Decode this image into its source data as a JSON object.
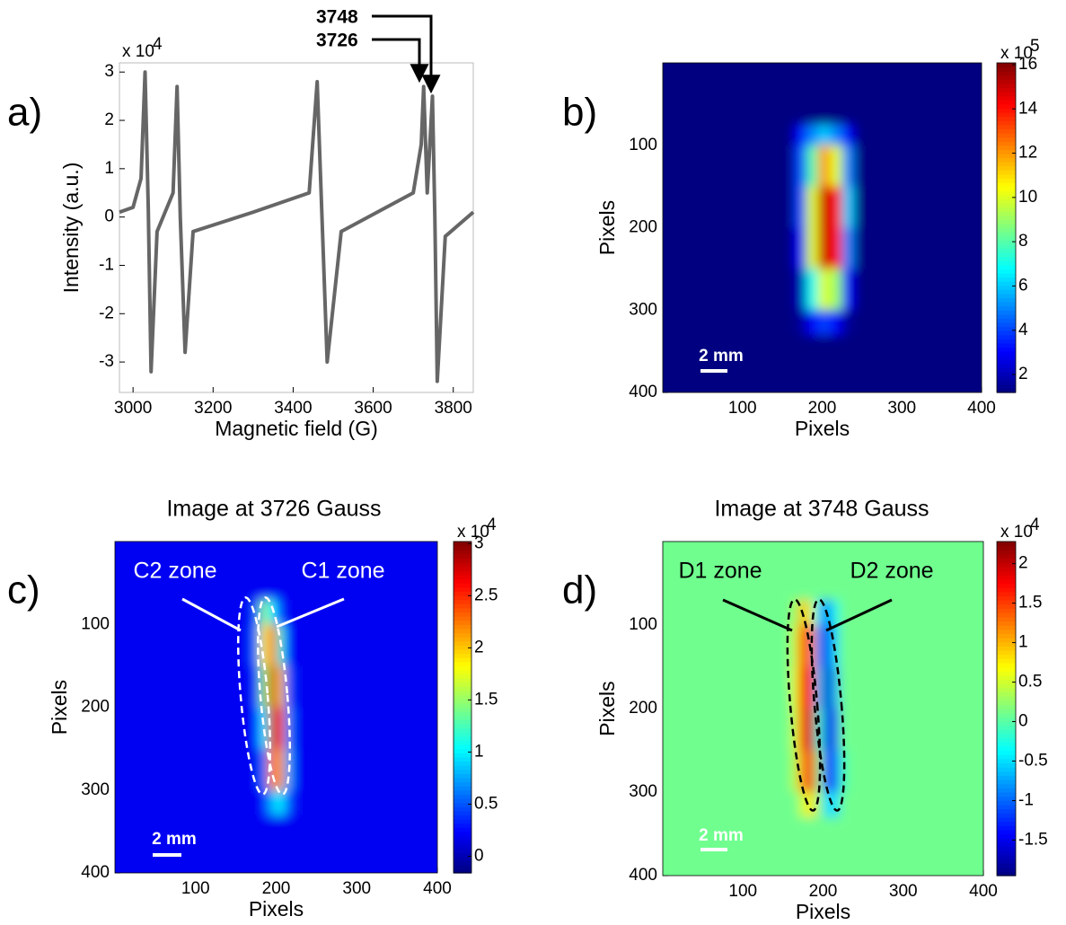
{
  "chart_data": [
    {
      "type": "line",
      "panel_label": "a)",
      "xlabel": "Magnetic field (G)",
      "ylabel": "Intensity (a.u.)",
      "y_multiplier": "x 10",
      "y_exponent": "4",
      "annotations": [
        "3748",
        "3726"
      ],
      "x": [
        2966,
        3000,
        3020,
        3030,
        3038,
        3045,
        3060,
        3100,
        3110,
        3118,
        3130,
        3150,
        3300,
        3440,
        3460,
        3472,
        3485,
        3520,
        3700,
        3720,
        3726,
        3735,
        3748,
        3754,
        3760,
        3780,
        3850
      ],
      "values": [
        0.1,
        0.2,
        0.8,
        3.0,
        0.2,
        -3.2,
        -0.3,
        0.5,
        2.7,
        0,
        -2.8,
        -0.3,
        0.1,
        0.5,
        2.8,
        0,
        -3.0,
        -0.3,
        0.5,
        1.5,
        2.7,
        0.5,
        2.5,
        0,
        -3.4,
        -0.4,
        0.1
      ],
      "color": "#666666",
      "xlim": [
        2966,
        3850
      ],
      "ylim": [
        -3.63,
        3.19
      ],
      "xticks": [
        3000,
        3200,
        3400,
        3600,
        3800
      ],
      "yticks": [
        -3,
        -2,
        -1,
        0,
        1,
        2,
        3
      ]
    },
    {
      "type": "heatmap",
      "panel_label": "b)",
      "xlabel": "Pixels",
      "ylabel": "Pixels",
      "scale_bar": "2 mm",
      "colormap": "jet",
      "xlim": [
        0,
        400
      ],
      "ylim": [
        0,
        400
      ],
      "y_reversed": true,
      "xticks": [
        100,
        200,
        300,
        400
      ],
      "yticks": [
        100,
        200,
        300,
        400
      ],
      "xbins": [
        0,
        165,
        180,
        195,
        210,
        225,
        240,
        400
      ],
      "ybins": [
        0,
        75,
        100,
        150,
        200,
        250,
        300,
        330,
        400
      ],
      "values": [
        [
          1.2,
          1.2,
          1.2,
          1.2,
          1.2,
          1.2,
          1.2
        ],
        [
          1.2,
          3,
          5,
          6,
          5,
          3,
          1.2
        ],
        [
          1.2,
          4,
          8,
          12,
          10,
          5,
          1.2
        ],
        [
          1.2,
          4,
          10,
          15,
          14,
          6,
          1.2
        ],
        [
          1.2,
          3,
          10,
          15,
          14,
          5,
          1.2
        ],
        [
          1.2,
          2,
          7,
          10,
          9,
          3,
          1.2
        ],
        [
          1.2,
          1.5,
          3,
          4,
          3,
          1.5,
          1.2
        ],
        [
          1.2,
          1.2,
          1.2,
          1.2,
          1.2,
          1.2,
          1.2
        ]
      ],
      "colorbar": {
        "lim": [
          1.19,
          16.08
        ],
        "ticks": [
          2,
          4,
          6,
          8,
          10,
          12,
          14,
          16
        ],
        "multiplier": "x 10",
        "exponent": "5"
      }
    },
    {
      "type": "heatmap",
      "panel_label": "c)",
      "title": "Image at 3726 Gauss",
      "xlabel": "Pixels",
      "ylabel": "Pixels",
      "scale_bar": "2 mm",
      "colormap": "jet",
      "zones": [
        "C2 zone",
        "C1 zone"
      ],
      "xlim": [
        0,
        400
      ],
      "ylim": [
        0,
        400
      ],
      "y_reversed": true,
      "xticks": [
        100,
        200,
        300,
        400
      ],
      "yticks": [
        100,
        200,
        300,
        400
      ],
      "xbins": [
        0,
        170,
        180,
        190,
        200,
        210,
        220,
        400
      ],
      "ybins": [
        0,
        70,
        100,
        150,
        200,
        250,
        300,
        330,
        400
      ],
      "values": [
        [
          0.2,
          0.2,
          0.2,
          0.2,
          0.2,
          0.2,
          0.2
        ],
        [
          0.2,
          0.5,
          1.5,
          1,
          0.4,
          0.2,
          0.2
        ],
        [
          0.2,
          0.6,
          1.8,
          2.5,
          1.2,
          0.3,
          0.2
        ],
        [
          0.2,
          0.4,
          1.5,
          2.8,
          2.0,
          0.5,
          0.2
        ],
        [
          0.2,
          0.3,
          1.0,
          2.8,
          2.4,
          0.7,
          0.2
        ],
        [
          0.2,
          0.2,
          0.6,
          2.2,
          2.2,
          0.8,
          0.2
        ],
        [
          0.2,
          0.2,
          0.3,
          0.8,
          1.0,
          0.5,
          0.2
        ],
        [
          0.2,
          0.2,
          0.2,
          0.2,
          0.2,
          0.2,
          0.2
        ]
      ],
      "colorbar": {
        "lim": [
          -0.16,
          3.02
        ],
        "ticks": [
          0,
          0.5,
          1,
          1.5,
          2,
          2.5,
          3
        ],
        "multiplier": "x 10",
        "exponent": "4"
      }
    },
    {
      "type": "heatmap",
      "panel_label": "d)",
      "title": "Image at 3748 Gauss",
      "xlabel": "Pixels",
      "ylabel": "Pixels",
      "scale_bar": "2 mm",
      "colormap": "jet",
      "zones": [
        "D1 zone",
        "D2 zone"
      ],
      "xlim": [
        0,
        400
      ],
      "ylim": [
        0,
        400
      ],
      "y_reversed": true,
      "xticks": [
        100,
        200,
        300,
        400
      ],
      "yticks": [
        100,
        200,
        300,
        400
      ],
      "xbins": [
        0,
        160,
        170,
        180,
        190,
        200,
        210,
        220,
        230,
        400
      ],
      "ybins": [
        0,
        70,
        100,
        150,
        200,
        250,
        300,
        330,
        400
      ],
      "values": [
        [
          0.1,
          0.1,
          0.1,
          0.1,
          0.1,
          0.1,
          0.1,
          0.1,
          0.1
        ],
        [
          0.1,
          0.3,
          1.0,
          0.5,
          -0.5,
          -1.0,
          -0.3,
          0.1,
          0.1
        ],
        [
          0.1,
          0.5,
          1.6,
          1.2,
          -0.8,
          -1.5,
          -0.5,
          0.1,
          0.1
        ],
        [
          0.1,
          0.6,
          1.8,
          1.6,
          -0.6,
          -1.7,
          -0.7,
          0.1,
          0.1
        ],
        [
          0.1,
          0.5,
          1.6,
          2.0,
          -0.2,
          -1.6,
          -1.0,
          0.1,
          0.1
        ],
        [
          0.1,
          0.4,
          1.2,
          1.8,
          0.2,
          -1.3,
          -1.0,
          -0.1,
          0.1
        ],
        [
          0.1,
          0.1,
          0.5,
          0.8,
          0.2,
          -0.5,
          -0.5,
          0.1,
          0.1
        ],
        [
          0.1,
          0.1,
          0.1,
          0.1,
          0.1,
          0.1,
          0.1,
          0.1,
          0.1
        ]
      ],
      "colorbar": {
        "lim": [
          -1.95,
          2.28
        ],
        "ticks": [
          -1.5,
          -1,
          -0.5,
          0,
          0.5,
          1,
          1.5,
          2
        ],
        "multiplier": "x 10",
        "exponent": "4"
      }
    }
  ]
}
